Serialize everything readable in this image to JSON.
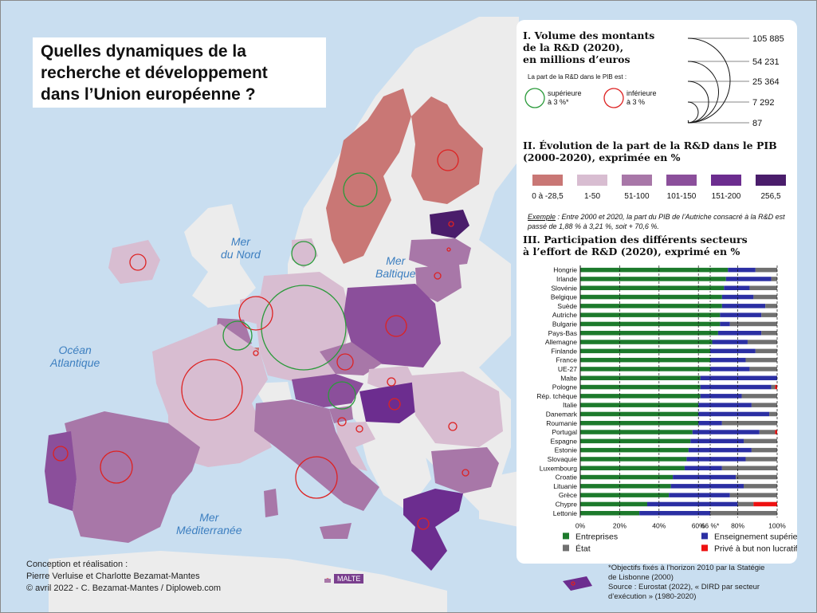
{
  "title": "Quelles dynamiques de la recherche et développement dans l’Union européenne ?",
  "title_lines": [
    "Quelles dynamiques de la",
    "recherche et développement",
    "dans l’Union européenne ?"
  ],
  "seas": {
    "mer_du_nord": [
      "Mer",
      "du Nord"
    ],
    "baltique": [
      "Mer",
      "Baltique"
    ],
    "atlantique": [
      "Océan",
      "Atlantique"
    ],
    "mediterranee": [
      "Mer",
      "Méditerranée"
    ]
  },
  "malte_label": "MALTE",
  "colors": {
    "sea": "#c9def0",
    "land_non_eu": "#ececec",
    "class_neg": "#c97775",
    "class_1_50": "#d8bdd1",
    "class_51_100": "#a877a8",
    "class_101_150": "#8b4f9b",
    "class_151_200": "#6c2d8f",
    "class_256": "#4a1d6b",
    "above_target": "#2a9a3a",
    "below_target": "#dd2222",
    "entreprises": "#1d7a2c",
    "enseignement": "#2b2fa3",
    "etat": "#707070",
    "prive": "#ee1111"
  },
  "legend_volume": {
    "title_lines": [
      "I. Volume des montants",
      "de la R&D (2020),",
      "en millions d’euros"
    ],
    "values": [
      "105 885",
      "54 231",
      "25 364",
      "7 292",
      "87"
    ],
    "part_label": "La part de la R&D dans le PIB est :",
    "above_lines": [
      "supérieure",
      "à 3 %*"
    ],
    "below_lines": [
      "inférieure",
      "à 3 %"
    ]
  },
  "legend_evolution": {
    "title_lines": [
      "II. Évolution de la part de la R&D dans le PIB",
      "(2000-2020), exprimée en %"
    ],
    "classes": [
      {
        "label": "0 à -28,5",
        "color": "#c97775"
      },
      {
        "label": "1-50",
        "color": "#d8bdd1"
      },
      {
        "label": "51-100",
        "color": "#a877a8"
      },
      {
        "label": "101-150",
        "color": "#8b4f9b"
      },
      {
        "label": "151-200",
        "color": "#6c2d8f"
      },
      {
        "label": "256,5",
        "color": "#4a1d6b"
      }
    ],
    "exemple_word": "Exemple",
    "exemple_text": " : Entre 2000 et 2020, la part du PIB de l’Autriche consacré à la R&D est passé de 1,88 % à 3,21 %, soit + 70,6 %."
  },
  "chart_data": {
    "type": "bar",
    "stacked": true,
    "orientation": "horizontal",
    "title_lines": [
      "III. Participation des différents secteurs",
      "à l’effort de R&D (2020), exprimé en %"
    ],
    "categories": [
      "Hongrie",
      "Irlande",
      "Slovénie",
      "Belgique",
      "Suède",
      "Autriche",
      "Bulgarie",
      "Pays-Bas",
      "Allemagne",
      "Finlande",
      "France",
      "UE-27",
      "Malte",
      "Pologne",
      "Rép. tchèque",
      "Italie",
      "Danemark",
      "Roumanie",
      "Portugal",
      "Espagne",
      "Estonie",
      "Slovaquie",
      "Luxembourg",
      "Croatie",
      "Lituanie",
      "Grèce",
      "Chypre",
      "Lettonie"
    ],
    "series": [
      {
        "name": "Entreprises",
        "values": [
          75,
          74,
          73,
          72,
          72,
          71,
          71,
          70,
          67,
          66,
          66,
          66,
          61,
          61,
          61,
          60,
          60,
          60,
          57,
          56,
          55,
          54,
          53,
          47,
          46,
          45,
          34,
          30
        ]
      },
      {
        "name": "Enseignement supérieur",
        "values": [
          14,
          23,
          13,
          16,
          22,
          21,
          5,
          22,
          18,
          23,
          18,
          20,
          39,
          36,
          21,
          27,
          36,
          12,
          34,
          27,
          32,
          30,
          19,
          32,
          37,
          31,
          46,
          36
        ]
      },
      {
        "name": "État",
        "values": [
          11,
          3,
          14,
          12,
          6,
          8,
          24,
          8,
          15,
          11,
          16,
          14,
          0,
          2,
          18,
          13,
          4,
          28,
          8,
          17,
          13,
          16,
          28,
          21,
          17,
          24,
          8,
          34
        ]
      },
      {
        "name": "Privé à but non lucratif",
        "values": [
          0,
          0,
          0,
          0,
          0,
          0,
          0,
          0,
          0,
          0,
          0,
          0,
          0,
          1,
          0,
          0,
          0,
          0,
          1,
          0,
          0,
          0,
          0,
          0,
          0,
          0,
          12,
          0
        ]
      }
    ],
    "xlim": [
      0,
      100
    ],
    "x_ticks": [
      "0%",
      "20%",
      "40%",
      "60%",
      "66 %*",
      "80%",
      "100%"
    ],
    "x_tick_values": [
      0,
      20,
      40,
      60,
      66,
      80,
      100
    ],
    "target_line": 66
  },
  "credits": [
    "Conception et réalisation :",
    "Pierre Verluise et Charlotte Bezamat-Mantes",
    "© avril 2022 - C. Bezamat-Mantes / Diploweb.com"
  ],
  "notes": [
    "*Objectifs fixés à l’horizon 2010 par la Statégie",
    "de Lisbonne (2000)",
    "Source : Eurostat (2022), « DIRD par secteur",
    "d’exécution » (1980-2020)"
  ]
}
